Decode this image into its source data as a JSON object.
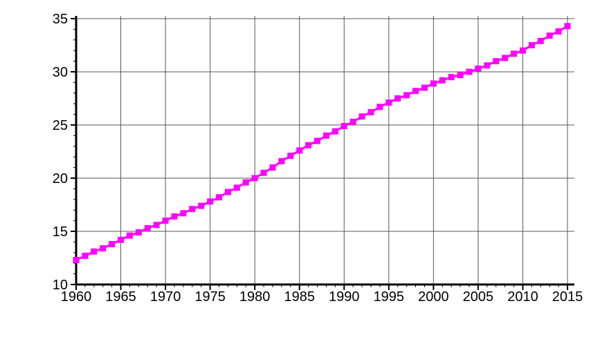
{
  "chart_data": {
    "type": "line",
    "title": "",
    "xlabel": "",
    "ylabel": "",
    "xlim": [
      1960,
      2015
    ],
    "ylim": [
      10,
      35
    ],
    "grid": true,
    "x_ticks": [
      1960,
      1965,
      1970,
      1975,
      1980,
      1985,
      1990,
      1995,
      2000,
      2005,
      2010,
      2015
    ],
    "y_ticks": [
      10,
      15,
      20,
      25,
      30,
      35
    ],
    "x_tick_labels": [
      "1960",
      "1965",
      "1970",
      "1975",
      "1980",
      "1985",
      "1990",
      "1995",
      "2000",
      "2005",
      "2010",
      "2015"
    ],
    "y_tick_labels": [
      "10",
      "15",
      "20",
      "25",
      "30",
      "35"
    ],
    "series": [
      {
        "color": "#ff00ff",
        "marker": "square",
        "x": [
          1960,
          1961,
          1962,
          1963,
          1964,
          1965,
          1966,
          1967,
          1968,
          1969,
          1970,
          1971,
          1972,
          1973,
          1974,
          1975,
          1976,
          1977,
          1978,
          1979,
          1980,
          1981,
          1982,
          1983,
          1984,
          1985,
          1986,
          1987,
          1988,
          1989,
          1990,
          1991,
          1992,
          1993,
          1994,
          1995,
          1996,
          1997,
          1998,
          1999,
          2000,
          2001,
          2002,
          2003,
          2004,
          2005,
          2006,
          2007,
          2008,
          2009,
          2010,
          2011,
          2012,
          2013,
          2014,
          2015
        ],
        "y": [
          12.3,
          12.7,
          13.1,
          13.4,
          13.8,
          14.2,
          14.6,
          14.9,
          15.3,
          15.6,
          16.0,
          16.4,
          16.7,
          17.1,
          17.4,
          17.8,
          18.2,
          18.7,
          19.1,
          19.6,
          20.0,
          20.5,
          21.0,
          21.6,
          22.1,
          22.6,
          23.1,
          23.5,
          24.0,
          24.4,
          24.9,
          25.3,
          25.8,
          26.2,
          26.7,
          27.1,
          27.5,
          27.8,
          28.2,
          28.5,
          28.9,
          29.2,
          29.5,
          29.7,
          30.0,
          30.3,
          30.6,
          31.0,
          31.3,
          31.7,
          32.0,
          32.5,
          32.9,
          33.4,
          33.8,
          34.3
        ]
      }
    ]
  }
}
